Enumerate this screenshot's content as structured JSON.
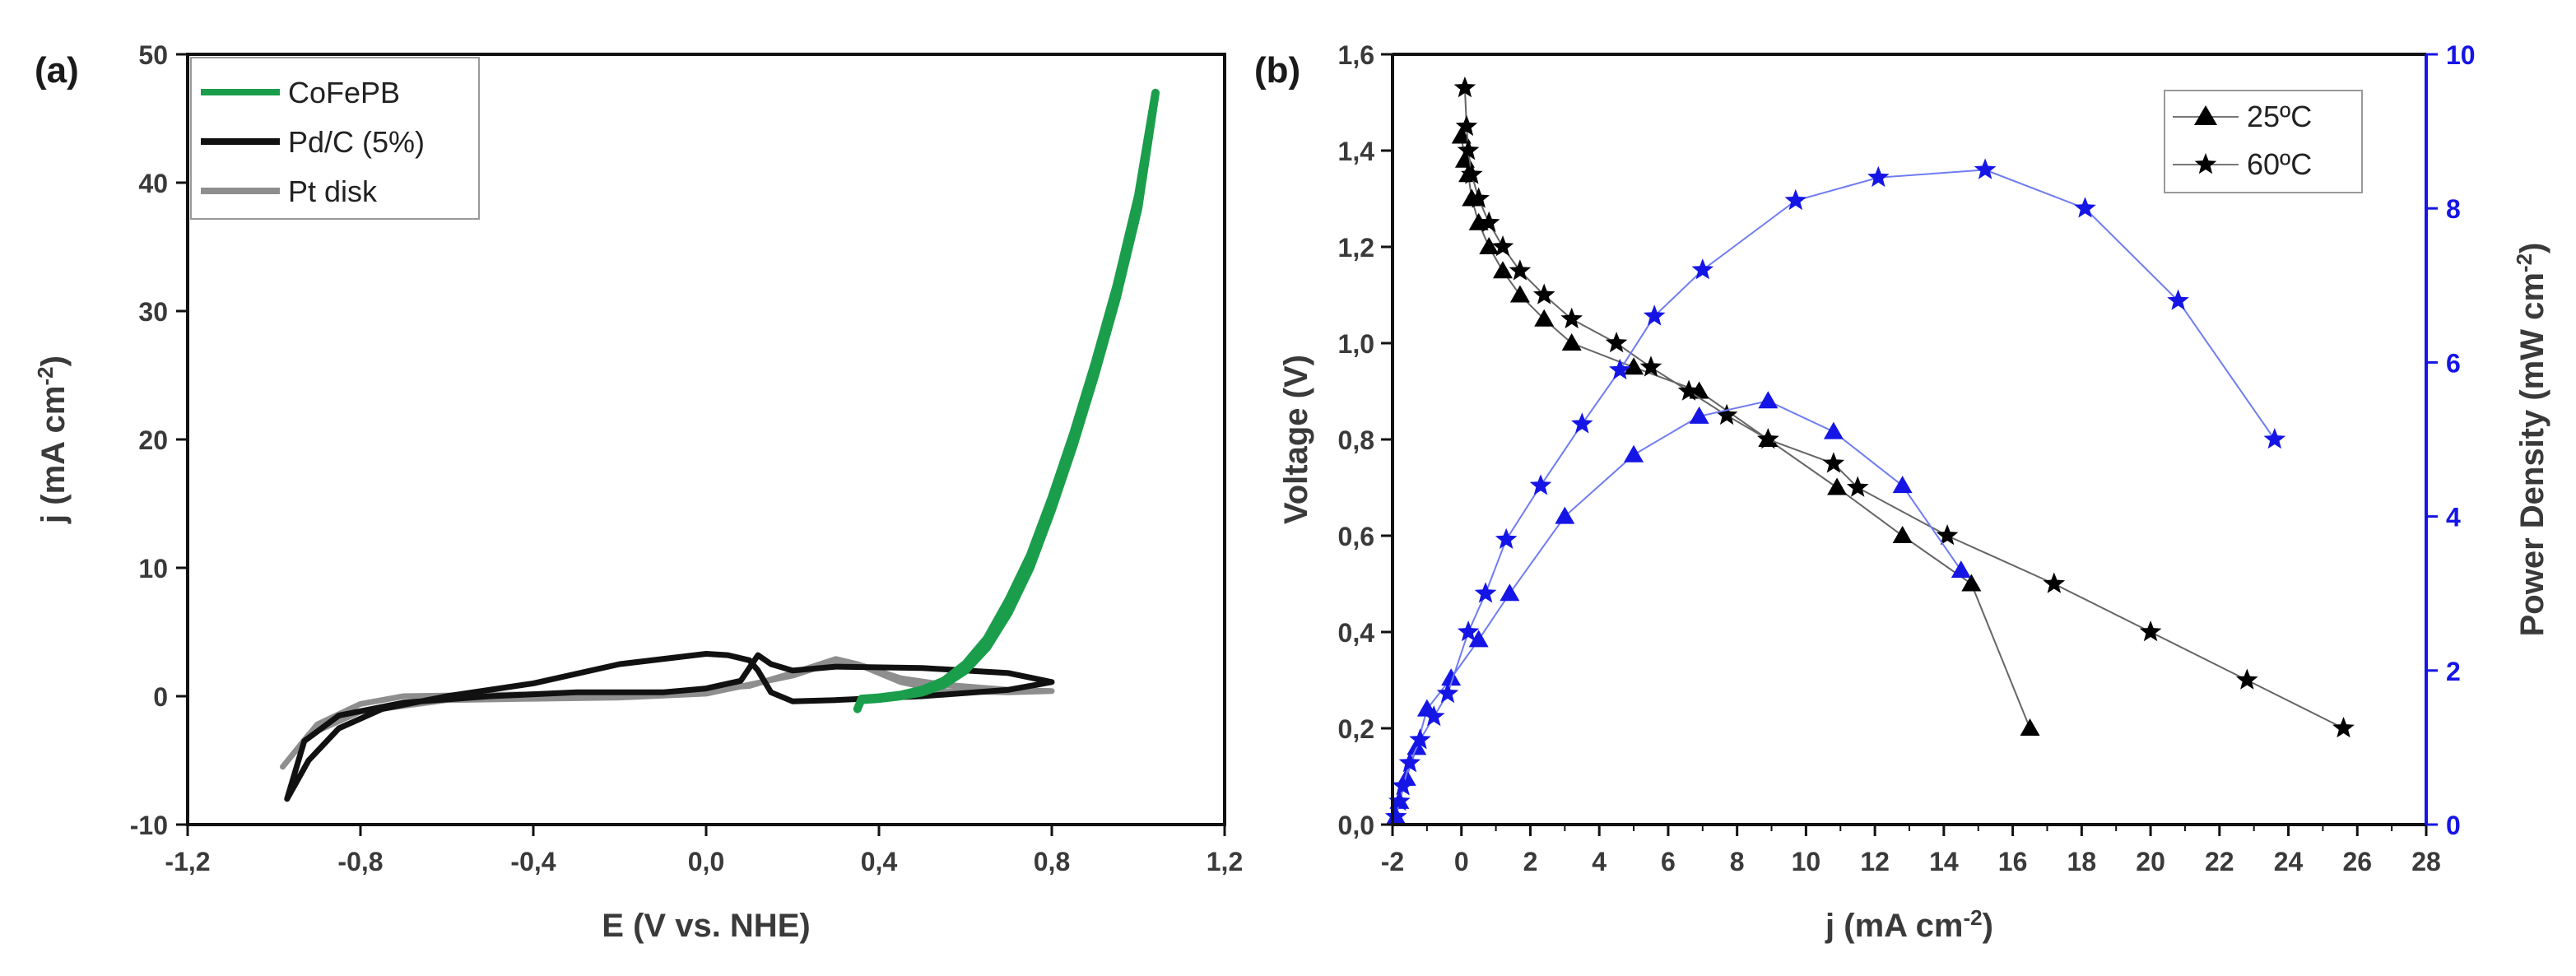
{
  "chart_data": [
    {
      "type": "line",
      "panel_label": "(a)",
      "title": "",
      "xlabel": "E (V vs. NHE)",
      "ylabel_main": "j (mA cm",
      "ylabel_sup": "-2",
      "ylabel_end": ")",
      "xlim": [
        -1.2,
        1.2
      ],
      "ylim": [
        -10,
        50
      ],
      "xticks": [
        -1.2,
        -0.8,
        -0.4,
        0.0,
        0.4,
        0.8,
        1.2
      ],
      "xtick_labels": [
        "-1,2",
        "-0,8",
        "-0,4",
        "0,0",
        "0,4",
        "0,8",
        "1,2"
      ],
      "yticks": [
        -10,
        0,
        10,
        20,
        30,
        40,
        50
      ],
      "ytick_labels": [
        "-10",
        "0",
        "10",
        "20",
        "30",
        "40",
        "50"
      ],
      "legend_position": "top-left",
      "series": [
        {
          "name": "CoFePB",
          "color": "#1a9e4b",
          "x": [
            0.36,
            0.4,
            0.45,
            0.5,
            0.55,
            0.6,
            0.65,
            0.7,
            0.75,
            0.8,
            0.85,
            0.9,
            0.95,
            1.0,
            1.04,
            1.0,
            0.95,
            0.9,
            0.85,
            0.8,
            0.75,
            0.7,
            0.65,
            0.6,
            0.55,
            0.5,
            0.45,
            0.4,
            0.36,
            0.35
          ],
          "y": [
            -0.3,
            -0.2,
            0.0,
            0.3,
            0.9,
            2.0,
            3.8,
            6.5,
            10.0,
            14.5,
            19.5,
            25.0,
            31.0,
            38.0,
            47.0,
            39.0,
            32.0,
            26.0,
            20.5,
            15.5,
            11.0,
            7.5,
            4.5,
            2.5,
            1.2,
            0.5,
            0.1,
            -0.1,
            -0.2,
            -1.0
          ]
        },
        {
          "name": "Pd/C (5%)",
          "color": "#111111",
          "x": [
            -0.97,
            -0.92,
            -0.85,
            -0.75,
            -0.6,
            -0.4,
            -0.2,
            0.0,
            0.05,
            0.1,
            0.12,
            0.15,
            0.2,
            0.3,
            0.5,
            0.7,
            0.8,
            0.7,
            0.5,
            0.3,
            0.2,
            0.15,
            0.12,
            0.08,
            0.0,
            -0.1,
            -0.3,
            -0.5,
            -0.7,
            -0.85,
            -0.93,
            -0.97
          ],
          "y": [
            -8.0,
            -5.0,
            -2.5,
            -1.0,
            0.0,
            1.0,
            2.5,
            3.3,
            3.2,
            2.8,
            2.0,
            0.3,
            -0.4,
            -0.3,
            0.0,
            0.5,
            1.1,
            1.8,
            2.2,
            2.3,
            2.0,
            2.5,
            3.2,
            1.2,
            0.6,
            0.3,
            0.3,
            0.0,
            -0.5,
            -1.5,
            -3.5,
            -8.0
          ]
        },
        {
          "name": "Pt disk",
          "color": "#8e8e8e",
          "x": [
            -0.98,
            -0.9,
            -0.8,
            -0.7,
            -0.5,
            -0.3,
            -0.1,
            0.1,
            0.2,
            0.3,
            0.35,
            0.45,
            0.55,
            0.7,
            0.8,
            0.7,
            0.55,
            0.45,
            0.35,
            0.3,
            0.2,
            0.0,
            -0.2,
            -0.4,
            -0.6,
            -0.8,
            -0.92,
            -0.98
          ],
          "y": [
            -5.5,
            -2.2,
            -0.6,
            0.0,
            0.1,
            0.2,
            0.3,
            0.8,
            1.8,
            2.9,
            2.5,
            1.4,
            0.9,
            0.5,
            0.4,
            0.3,
            0.4,
            1.1,
            2.5,
            2.7,
            1.6,
            0.2,
            -0.1,
            -0.2,
            -0.3,
            -1.2,
            -3.0,
            -5.5
          ]
        }
      ]
    },
    {
      "type": "line",
      "panel_label": "(b)",
      "title": "",
      "xlabel_main": "j (mA cm",
      "xlabel_sup": "-2",
      "xlabel_end": ")",
      "ylabel": "Voltage (V)",
      "y2label_main": "Power Density (mW cm",
      "y2label_sup": "-2",
      "y2label_end": ")",
      "xlim": [
        -2,
        28
      ],
      "ylim": [
        0.0,
        1.6
      ],
      "y2lim": [
        0,
        10
      ],
      "xticks": [
        -2,
        0,
        2,
        4,
        6,
        8,
        10,
        12,
        14,
        16,
        18,
        20,
        22,
        24,
        26,
        28
      ],
      "xtick_labels": [
        "-2",
        "0",
        "2",
        "4",
        "6",
        "8",
        "10",
        "12",
        "14",
        "16",
        "18",
        "20",
        "22",
        "24",
        "26",
        "28"
      ],
      "yticks": [
        0.0,
        0.2,
        0.4,
        0.6,
        0.8,
        1.0,
        1.2,
        1.4,
        1.6
      ],
      "ytick_labels": [
        "0,0",
        "0,2",
        "0,4",
        "0,6",
        "0,8",
        "1,0",
        "1,2",
        "1,4",
        "1,6"
      ],
      "y2ticks": [
        0,
        2,
        4,
        6,
        8,
        10
      ],
      "y2tick_labels": [
        "0",
        "2",
        "4",
        "6",
        "8",
        "10"
      ],
      "legend_position": "top-right",
      "y2_color": "#1515e6",
      "series": [
        {
          "name": "25ºC",
          "axis": "voltage",
          "marker": "triangle",
          "color": "#000000",
          "x": [
            0.0,
            0.1,
            0.2,
            0.3,
            0.5,
            0.8,
            1.2,
            1.7,
            2.4,
            3.2,
            5.0,
            6.9,
            8.9,
            10.9,
            12.8,
            14.8,
            16.5
          ],
          "y": [
            1.43,
            1.38,
            1.35,
            1.3,
            1.25,
            1.2,
            1.15,
            1.1,
            1.05,
            1.0,
            0.95,
            0.9,
            0.8,
            0.7,
            0.6,
            0.5,
            0.2
          ]
        },
        {
          "name": "60ºC",
          "axis": "voltage",
          "marker": "star",
          "color": "#000000",
          "x": [
            0.1,
            0.15,
            0.2,
            0.3,
            0.5,
            0.8,
            1.2,
            1.7,
            2.4,
            3.2,
            4.5,
            5.5,
            6.6,
            7.7,
            8.9,
            10.8,
            11.5,
            14.1,
            17.2,
            20.0,
            22.8,
            25.6
          ],
          "y": [
            1.53,
            1.45,
            1.4,
            1.35,
            1.3,
            1.25,
            1.2,
            1.15,
            1.1,
            1.05,
            1.0,
            0.95,
            0.9,
            0.85,
            0.8,
            0.75,
            0.7,
            0.6,
            0.5,
            0.4,
            0.3,
            0.2
          ]
        },
        {
          "name": "25ºC power",
          "axis": "power",
          "marker": "triangle",
          "color": "#1515e6",
          "x": [
            -1.9,
            -1.8,
            -1.6,
            -1.3,
            -1.0,
            -0.3,
            0.5,
            1.4,
            3.0,
            5.0,
            6.9,
            8.9,
            10.8,
            12.8,
            14.5
          ],
          "y": [
            0.1,
            0.3,
            0.6,
            1.0,
            1.5,
            1.9,
            2.4,
            3.0,
            4.0,
            4.8,
            5.3,
            5.5,
            5.1,
            4.4,
            3.3
          ]
        },
        {
          "name": "60ºC power",
          "axis": "power",
          "marker": "star",
          "color": "#1515e6",
          "x": [
            -1.9,
            -1.8,
            -1.7,
            -1.5,
            -1.2,
            -0.8,
            -0.4,
            0.2,
            0.7,
            1.3,
            2.3,
            3.5,
            4.6,
            5.6,
            7.0,
            9.7,
            12.1,
            15.2,
            18.1,
            20.8,
            23.6
          ],
          "y": [
            0.1,
            0.3,
            0.5,
            0.8,
            1.1,
            1.4,
            1.7,
            2.5,
            3.0,
            3.7,
            4.4,
            5.2,
            5.9,
            6.6,
            7.2,
            8.1,
            8.4,
            8.5,
            8.0,
            6.8,
            5.0
          ]
        }
      ]
    }
  ]
}
